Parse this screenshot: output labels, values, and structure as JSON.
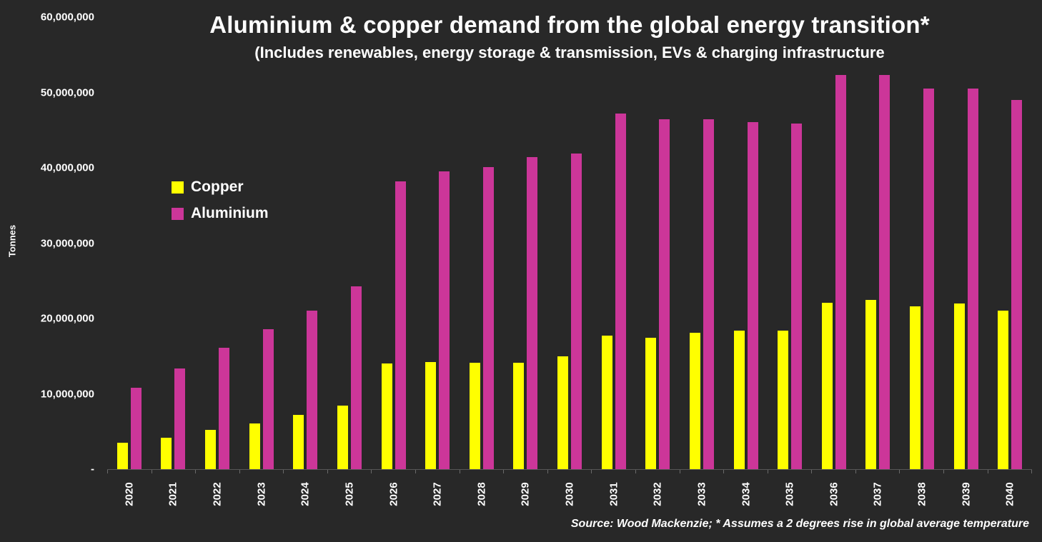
{
  "header": {
    "title": "Aluminium & copper demand from the global energy transition*",
    "subtitle": "(Includes renewables, energy storage & transmission, EVs & charging infrastructure"
  },
  "footer": {
    "source_note": "Source: Wood Mackenzie; * Assumes a 2 degrees rise in global average temperature"
  },
  "legend": [
    {
      "label": "Copper",
      "color": "#ffff00"
    },
    {
      "label": "Aluminium",
      "color": "#cc3699"
    }
  ],
  "colors": {
    "background": "#282828",
    "text": "#ffffff",
    "copper": "#ffff00",
    "aluminium": "#cc3699"
  },
  "chart_data": {
    "type": "bar",
    "title": "Aluminium & copper demand from the global energy transition*",
    "subtitle": "(Includes renewables, energy storage & transmission, EVs & charging infrastructure",
    "xlabel": "",
    "ylabel": "Tonnes",
    "ylim": [
      0,
      60000000
    ],
    "ytick_interval": 10000000,
    "ytick_labels_top_to_bottom": [
      "60,000,000",
      "50,000,000",
      "40,000,000",
      "30,000,000",
      "20,000,000",
      "10,000,000",
      "-"
    ],
    "grid": false,
    "legend_position": "inside-upper-left",
    "categories": [
      "2020",
      "2021",
      "2022",
      "2023",
      "2024",
      "2025",
      "2026",
      "2027",
      "2028",
      "2029",
      "2030",
      "2031",
      "2032",
      "2033",
      "2034",
      "2035",
      "2036",
      "2037",
      "2038",
      "2039",
      "2040"
    ],
    "series": [
      {
        "name": "Copper",
        "color": "#ffff00",
        "values": [
          3500000,
          4200000,
          5200000,
          6100000,
          7200000,
          8400000,
          14000000,
          14200000,
          14100000,
          14100000,
          15000000,
          17700000,
          17400000,
          18100000,
          18400000,
          18400000,
          22100000,
          22500000,
          21600000,
          22000000,
          21000000
        ]
      },
      {
        "name": "Aluminium",
        "color": "#cc3699",
        "values": [
          10800000,
          13400000,
          16100000,
          18600000,
          21000000,
          24300000,
          38200000,
          39500000,
          40100000,
          41400000,
          41900000,
          47200000,
          46400000,
          46400000,
          46100000,
          45900000,
          52300000,
          52300000,
          50500000,
          50500000,
          49000000
        ]
      }
    ],
    "source_note": "Source: Wood Mackenzie; * Assumes a 2 degrees rise in global average temperature"
  }
}
